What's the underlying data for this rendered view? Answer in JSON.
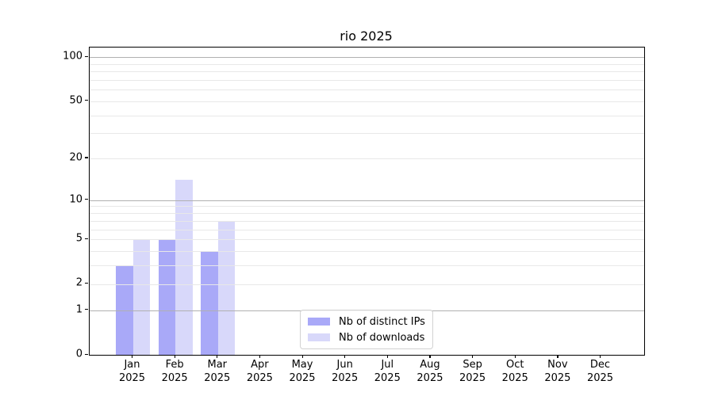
{
  "chart_data": {
    "type": "bar",
    "title": "rio 2025",
    "categories": [
      "Jan 2025",
      "Feb 2025",
      "Mar 2025",
      "Apr 2025",
      "May 2025",
      "Jun 2025",
      "Jul 2025",
      "Aug 2025",
      "Sep 2025",
      "Oct 2025",
      "Nov 2025",
      "Dec 2025"
    ],
    "series": [
      {
        "name": "Nb of distinct IPs",
        "color": "#a9a9f8",
        "values": [
          3,
          5,
          4,
          0,
          0,
          0,
          0,
          0,
          0,
          0,
          0,
          0
        ]
      },
      {
        "name": "Nb of downloads",
        "color": "#d8d8fa",
        "values": [
          5,
          14,
          7,
          0,
          0,
          0,
          0,
          0,
          0,
          0,
          0,
          0
        ]
      }
    ],
    "yscale": "log1p",
    "yticks": [
      0,
      1,
      2,
      5,
      10,
      20,
      50,
      100
    ],
    "ylim": [
      0,
      117
    ],
    "grid": "on",
    "legend_position": "lower-center",
    "colors": {
      "major_grid": "#b0b0b0",
      "minor_grid": "#e8e8e8",
      "axis": "#000000",
      "text": "#000000",
      "background": "#ffffff"
    }
  }
}
